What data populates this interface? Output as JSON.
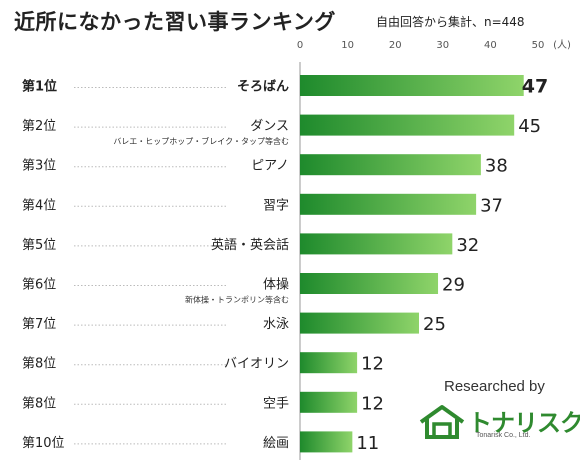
{
  "title": "近所になかった習い事ランキング",
  "subtitle": "自由回答から集計、n=448",
  "brand": {
    "researched_by": "Researched by",
    "name": "トナリスク",
    "company": "Tonarisk Co., Ltd.",
    "color": "#2f8a2f"
  },
  "chart_data": {
    "type": "bar",
    "orientation": "horizontal",
    "unit": "(人)",
    "xlim": [
      0,
      50
    ],
    "ticks": [
      0,
      10,
      20,
      30,
      40,
      50
    ],
    "ranks": [
      "第1位",
      "第2位",
      "第3位",
      "第4位",
      "第5位",
      "第6位",
      "第7位",
      "第8位",
      "第8位",
      "第10位"
    ],
    "categories": [
      "そろばん",
      "ダンス",
      "ピアノ",
      "習字",
      "英語・英会話",
      "体操",
      "水泳",
      "バイオリン",
      "空手",
      "絵画"
    ],
    "values": [
      47,
      45,
      38,
      37,
      32,
      29,
      25,
      12,
      12,
      11
    ],
    "notes": {
      "ダンス": "バレエ・ヒップホップ・ブレイク・タップ等含む",
      "体操": "新体操・トランポリン等含む"
    },
    "bar_color_light": "#8fd46a",
    "bar_color_dark": "#1e8a2c"
  }
}
